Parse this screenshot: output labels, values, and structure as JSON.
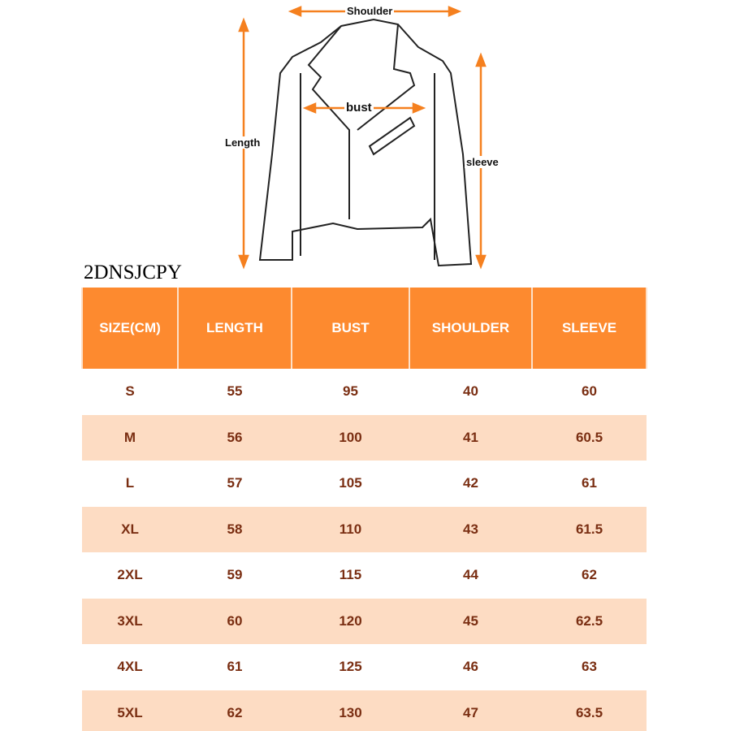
{
  "diagram": {
    "shoulder": "Shoulder",
    "bust": "bust",
    "length": "Length",
    "sleeve": "sleeve",
    "accent": "#f5801f"
  },
  "brand": "2DNSJCPY",
  "table": {
    "headers": [
      "SIZE(CM)",
      "LENGTH",
      "BUST",
      "SHOULDER",
      "SLEEVE"
    ],
    "rows": [
      [
        "S",
        "55",
        "95",
        "40",
        "60"
      ],
      [
        "M",
        "56",
        "100",
        "41",
        "60.5"
      ],
      [
        "L",
        "57",
        "105",
        "42",
        "61"
      ],
      [
        "XL",
        "58",
        "110",
        "43",
        "61.5"
      ],
      [
        "2XL",
        "59",
        "115",
        "44",
        "62"
      ],
      [
        "3XL",
        "60",
        "120",
        "45",
        "62.5"
      ],
      [
        "4XL",
        "61",
        "125",
        "46",
        "63"
      ],
      [
        "5XL",
        "62",
        "130",
        "47",
        "63.5"
      ]
    ],
    "header_color": "#fd8a2f",
    "stripe_color": "#fddcc3",
    "text_color": "#7a2e12"
  }
}
